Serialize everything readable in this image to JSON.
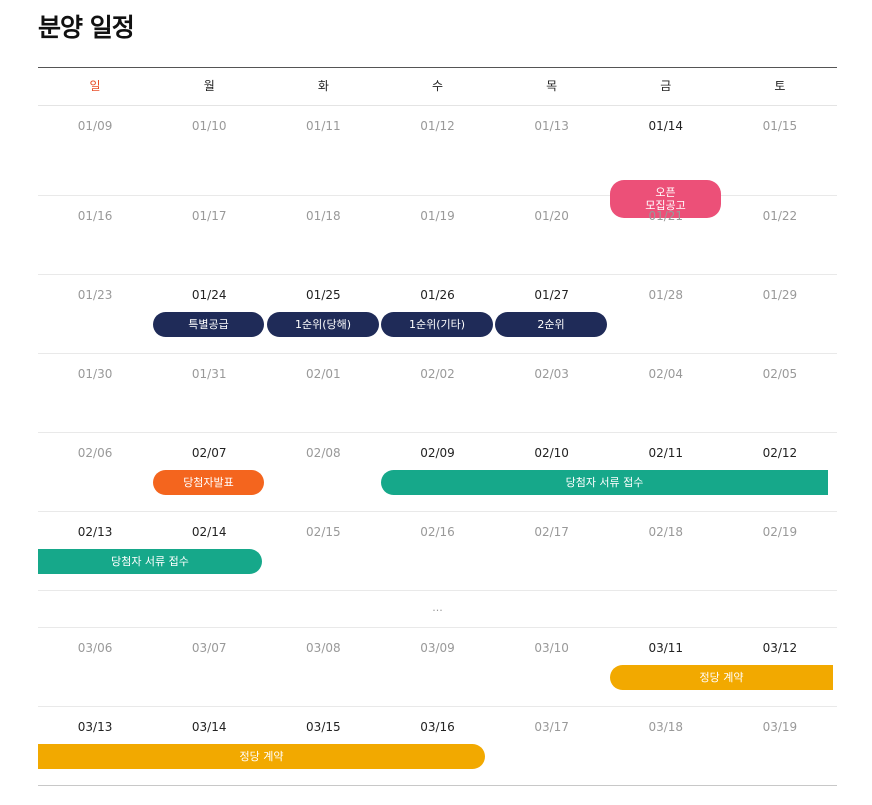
{
  "page_title": "분양 일정",
  "weekdays": [
    "일",
    "월",
    "화",
    "수",
    "목",
    "금",
    "토"
  ],
  "weeks": [
    [
      "01/09",
      "01/10",
      "01/11",
      "01/12",
      "01/13",
      "01/14",
      "01/15"
    ],
    [
      "01/16",
      "01/17",
      "01/18",
      "01/19",
      "01/20",
      "01/21",
      "01/22"
    ],
    [
      "01/23",
      "01/24",
      "01/25",
      "01/26",
      "01/27",
      "01/28",
      "01/29"
    ],
    [
      "01/30",
      "01/31",
      "02/01",
      "02/02",
      "02/03",
      "02/04",
      "02/05"
    ],
    [
      "02/06",
      "02/07",
      "02/08",
      "02/09",
      "02/10",
      "02/11",
      "02/12"
    ],
    [
      "02/13",
      "02/14",
      "02/15",
      "02/16",
      "02/17",
      "02/18",
      "02/19"
    ],
    [
      "03/06",
      "03/07",
      "03/08",
      "03/09",
      "03/10",
      "03/11",
      "03/12"
    ],
    [
      "03/13",
      "03/14",
      "03/15",
      "03/16",
      "03/17",
      "03/18",
      "03/19"
    ]
  ],
  "ellipsis": "...",
  "events": {
    "open": "오픈\n모집공고",
    "special": "특별공급",
    "first_local": "1순위(당해)",
    "first_other": "1순위(기타)",
    "second": "2순위",
    "winners": "당첨자발표",
    "documents": "당첨자 서류 접수",
    "documents_cont": "당첨자 서류 접수",
    "contract": "정당 계약",
    "contract_cont": "정당 계약"
  },
  "colors": {
    "navy": "#1f2b58",
    "pink": "#ec5078",
    "orange": "#f4651e",
    "teal": "#16a88a",
    "gold": "#f2a900",
    "sunday": "#e8502b"
  }
}
